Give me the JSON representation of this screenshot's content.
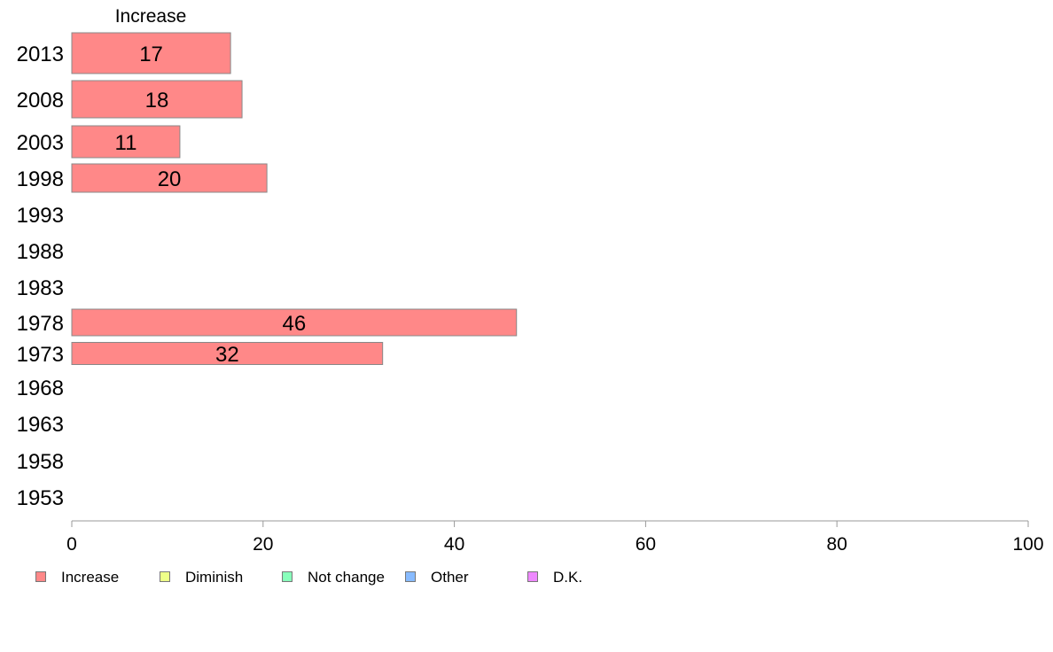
{
  "chart_data": {
    "type": "bar",
    "orientation": "horizontal",
    "column_title": "Increase",
    "categories": [
      "2013",
      "2008",
      "2003",
      "1998",
      "1993",
      "1988",
      "1983",
      "1978",
      "1973",
      "1968",
      "1963",
      "1958",
      "1953"
    ],
    "series": [
      {
        "name": "Increase",
        "color": "#ff8888",
        "values": [
          16.6,
          17.8,
          11.3,
          20.4,
          null,
          null,
          null,
          46.5,
          32.5,
          null,
          null,
          null,
          null
        ],
        "labels": [
          "17",
          "18",
          "11",
          "20",
          "",
          "",
          "",
          "46",
          "32",
          "",
          "",
          "",
          ""
        ]
      }
    ],
    "xlim": [
      0,
      100
    ],
    "xticks": [
      "0",
      "20",
      "40",
      "60",
      "80",
      "100"
    ],
    "grid": false,
    "legend": {
      "position": "bottom",
      "items": [
        {
          "label": "Increase",
          "color": "#ff8888"
        },
        {
          "label": "Diminish",
          "color": "#eeff88"
        },
        {
          "label": "Not change",
          "color": "#88ffbb"
        },
        {
          "label": "Other",
          "color": "#88bbff"
        },
        {
          "label": "D.K.",
          "color": "#ee88ff"
        }
      ]
    }
  }
}
